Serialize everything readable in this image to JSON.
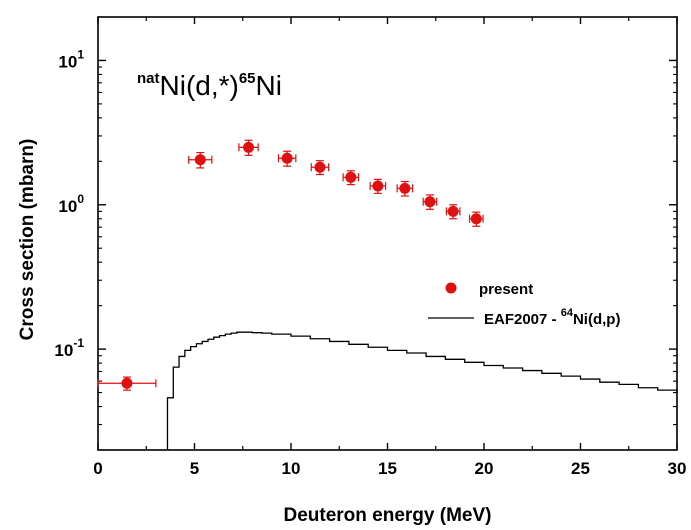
{
  "chart_data": {
    "type": "scatter",
    "title": "",
    "xlabel": "Deuteron energy (MeV)",
    "ylabel": "Cross section (mbarn)",
    "xlim": [
      0,
      30
    ],
    "ylim": [
      0.02,
      20
    ],
    "yscale": "log",
    "grid": false,
    "legend_position": "right",
    "x_ticks": [
      0,
      5,
      10,
      15,
      20,
      25,
      30
    ],
    "x_tick_labels": [
      "0",
      "5",
      "10",
      "15",
      "20",
      "25",
      "30"
    ],
    "y_ticks": [
      {
        "value": 0.1,
        "base": "10",
        "exp": "-1"
      },
      {
        "value": 1,
        "base": "10",
        "exp": "0"
      },
      {
        "value": 10,
        "base": "10",
        "exp": "1"
      }
    ],
    "annotation": {
      "pre": "nat",
      "main1": "Ni(d,*)",
      "sup2": "65",
      "main2": "Ni"
    },
    "series": [
      {
        "name": "present",
        "kind": "points",
        "color": "#e01010",
        "points": [
          {
            "x": 1.5,
            "y": 0.058,
            "xerr": 1.5,
            "yerr": 0.006
          },
          {
            "x": 5.3,
            "y": 2.05,
            "xerr": 0.6,
            "yerr": 0.25
          },
          {
            "x": 7.8,
            "y": 2.5,
            "xerr": 0.5,
            "yerr": 0.3
          },
          {
            "x": 9.8,
            "y": 2.1,
            "xerr": 0.45,
            "yerr": 0.25
          },
          {
            "x": 11.5,
            "y": 1.82,
            "xerr": 0.45,
            "yerr": 0.2
          },
          {
            "x": 13.1,
            "y": 1.55,
            "xerr": 0.4,
            "yerr": 0.17
          },
          {
            "x": 14.5,
            "y": 1.35,
            "xerr": 0.4,
            "yerr": 0.15
          },
          {
            "x": 15.9,
            "y": 1.3,
            "xerr": 0.4,
            "yerr": 0.15
          },
          {
            "x": 17.2,
            "y": 1.05,
            "xerr": 0.35,
            "yerr": 0.12
          },
          {
            "x": 18.4,
            "y": 0.9,
            "xerr": 0.35,
            "yerr": 0.1
          },
          {
            "x": 19.6,
            "y": 0.8,
            "xerr": 0.35,
            "yerr": 0.09
          }
        ]
      },
      {
        "name": "EAF2007 - ",
        "name_sup": "64",
        "name_tail": "Ni(d,p)",
        "kind": "step",
        "color": "#000000",
        "x": [
          3.6,
          3.9,
          4.2,
          4.5,
          4.8,
          5.1,
          5.4,
          5.7,
          6.0,
          6.3,
          6.6,
          6.9,
          7.2,
          7.5,
          8.0,
          8.5,
          9.0,
          10,
          11,
          12,
          13,
          14,
          15,
          16,
          17,
          18,
          19,
          20,
          21,
          22,
          23,
          24,
          25,
          26,
          27,
          28,
          29,
          30
        ],
        "y": [
          0.046,
          0.075,
          0.089,
          0.098,
          0.104,
          0.109,
          0.113,
          0.117,
          0.121,
          0.124,
          0.127,
          0.129,
          0.131,
          0.131,
          0.13,
          0.129,
          0.127,
          0.123,
          0.118,
          0.113,
          0.108,
          0.103,
          0.098,
          0.094,
          0.089,
          0.085,
          0.081,
          0.077,
          0.074,
          0.071,
          0.068,
          0.065,
          0.062,
          0.059,
          0.057,
          0.054,
          0.052,
          0.05
        ]
      }
    ]
  }
}
